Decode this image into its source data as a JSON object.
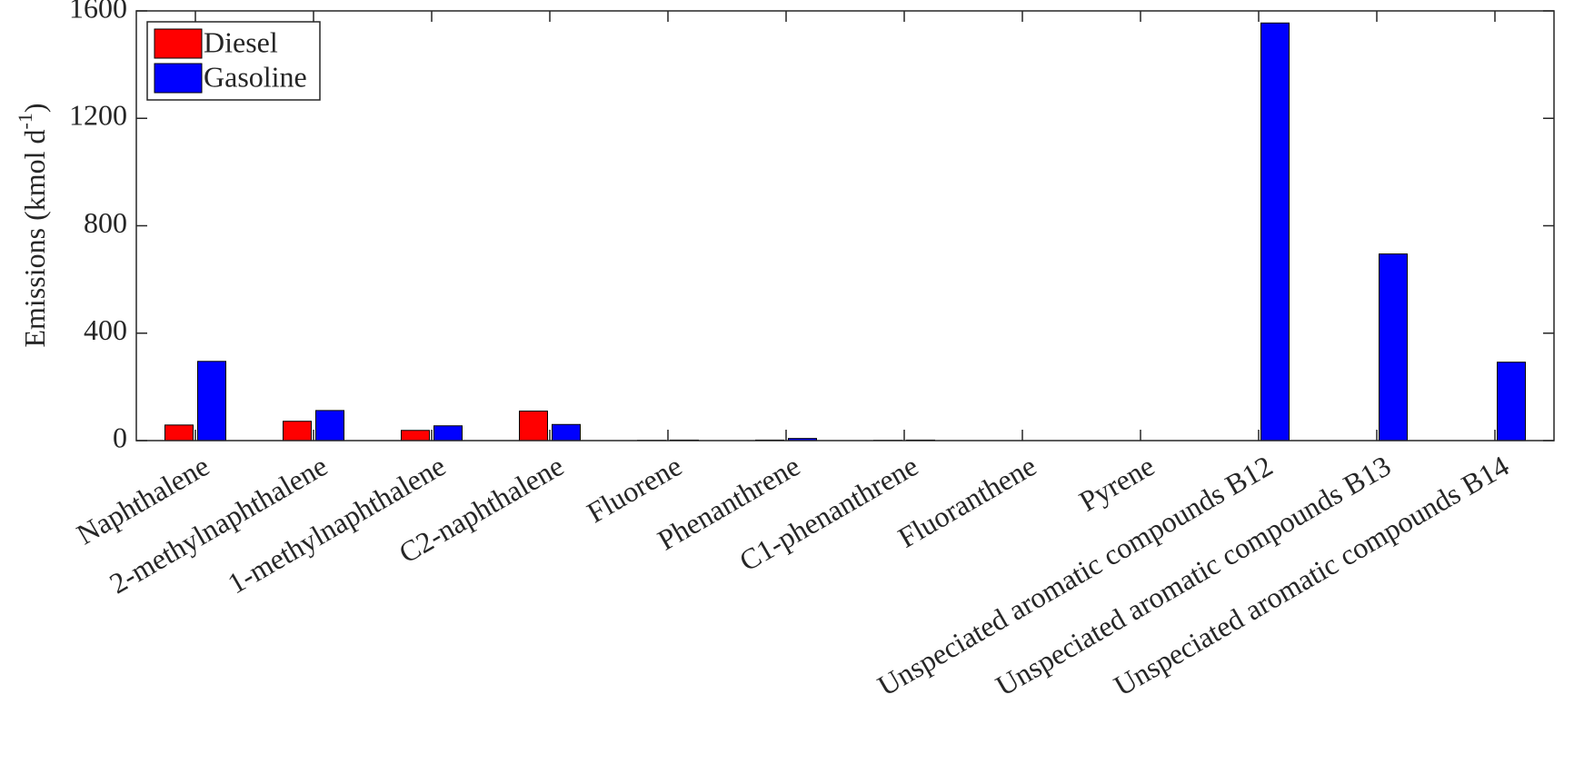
{
  "chart_data": {
    "type": "bar",
    "ylabel": {
      "text": "Emissions (kmol d",
      "superscript": "-1",
      "suffix": ")"
    },
    "categories": [
      "Naphthalene",
      "2-methylnaphthalene",
      "1-methylnaphthalene",
      "C2-naphthalene",
      "Fluorene",
      "Phenanthrene",
      "C1-phenanthrene",
      "Fluoranthene",
      "Pyrene",
      "Unspeciated aromatic compounds B12",
      "Unspeciated aromatic compounds B13",
      "Unspeciated aromatic compounds B14"
    ],
    "series": [
      {
        "name": "Diesel",
        "color": "#ff0000",
        "values": [
          58,
          72,
          38,
          110,
          1,
          2,
          1,
          0,
          0,
          0,
          0,
          0
        ]
      },
      {
        "name": "Gasoline",
        "color": "#0000ff",
        "values": [
          295,
          112,
          55,
          60,
          2,
          8,
          2,
          0,
          0,
          1555,
          695,
          292
        ]
      }
    ],
    "ylim": [
      0,
      1600
    ],
    "yticks": [
      0,
      400,
      800,
      1200,
      1600
    ],
    "grid": false,
    "legend": "top-left"
  }
}
